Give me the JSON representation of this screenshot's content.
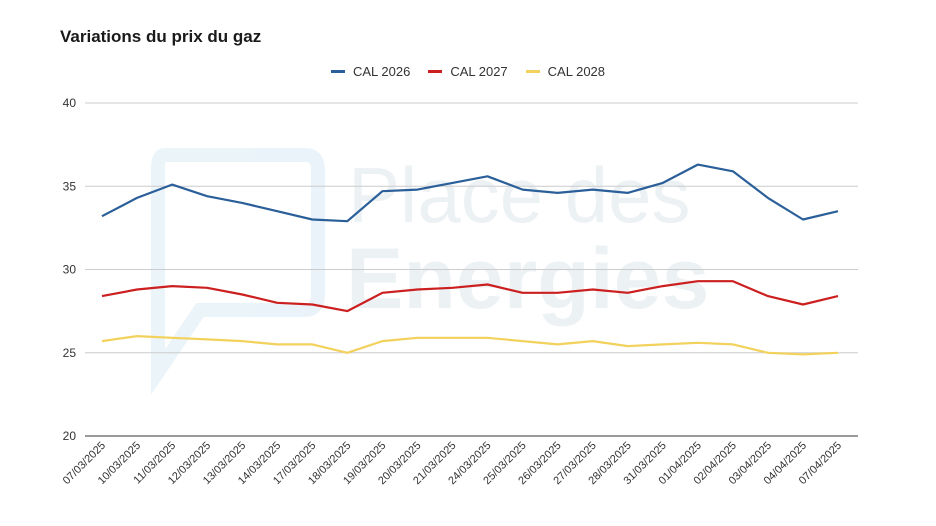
{
  "chart_data": {
    "type": "line",
    "title": "Variations du prix du gaz",
    "xlabel": "",
    "ylabel": "",
    "ylim": [
      20,
      40
    ],
    "yticks": [
      20,
      25,
      30,
      35,
      40
    ],
    "grid": true,
    "legend_position": "top",
    "categories": [
      "07/03/2025",
      "10/03/2025",
      "11/03/2025",
      "12/03/2025",
      "13/03/2025",
      "14/03/2025",
      "17/03/2025",
      "18/03/2025",
      "19/03/2025",
      "20/03/2025",
      "21/03/2025",
      "24/03/2025",
      "25/03/2025",
      "26/03/2025",
      "27/03/2025",
      "28/03/2025",
      "31/03/2025",
      "01/04/2025",
      "02/04/2025",
      "03/04/2025",
      "04/04/2025",
      "07/04/2025"
    ],
    "series": [
      {
        "name": "CAL 2026",
        "color": "#2b5f99",
        "values": [
          33.2,
          34.3,
          35.1,
          34.4,
          34.0,
          33.5,
          33.0,
          32.9,
          34.7,
          34.8,
          35.2,
          35.6,
          34.8,
          34.6,
          34.8,
          34.6,
          35.2,
          36.3,
          35.9,
          34.3,
          33.0,
          33.5
        ]
      },
      {
        "name": "CAL 2027",
        "color": "#cc1f1f",
        "values": [
          28.4,
          28.8,
          29.0,
          28.9,
          28.5,
          28.0,
          27.9,
          27.5,
          28.6,
          28.8,
          28.9,
          29.1,
          28.6,
          28.6,
          28.8,
          28.6,
          29.0,
          29.3,
          29.3,
          28.4,
          27.9,
          28.4
        ]
      },
      {
        "name": "CAL 2028",
        "color": "#f2d15c",
        "values": [
          25.7,
          26.0,
          25.9,
          25.8,
          25.7,
          25.5,
          25.5,
          25.0,
          25.7,
          25.9,
          25.9,
          25.9,
          25.7,
          25.5,
          25.7,
          25.4,
          25.5,
          25.6,
          25.5,
          25.0,
          24.9,
          25.0
        ]
      }
    ]
  },
  "watermark": {
    "text_line1": "Place des",
    "text_line2": "Energies",
    "color": "#bcd9ea"
  }
}
